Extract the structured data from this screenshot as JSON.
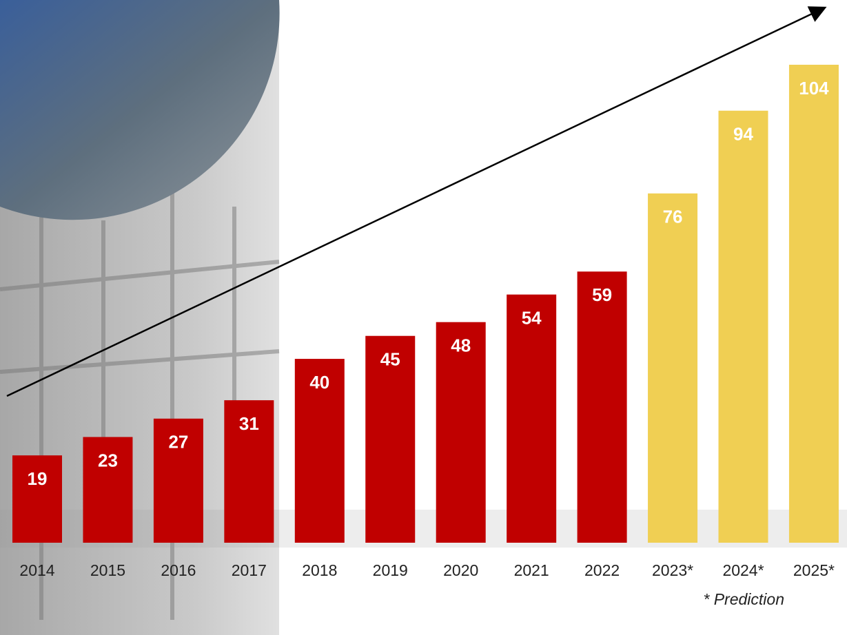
{
  "chart_data": {
    "type": "bar",
    "categories": [
      "2014",
      "2015",
      "2016",
      "2017",
      "2018",
      "2019",
      "2020",
      "2021",
      "2022",
      "2023*",
      "2024*",
      "2025*"
    ],
    "values": [
      19,
      23,
      27,
      31,
      40,
      45,
      48,
      54,
      59,
      76,
      94,
      104
    ],
    "colors": [
      "#c00000",
      "#c00000",
      "#c00000",
      "#c00000",
      "#c00000",
      "#c00000",
      "#c00000",
      "#c00000",
      "#c00000",
      "#f0cf53",
      "#f0cf53",
      "#f0cf53"
    ],
    "annotation": "* Prediction"
  }
}
